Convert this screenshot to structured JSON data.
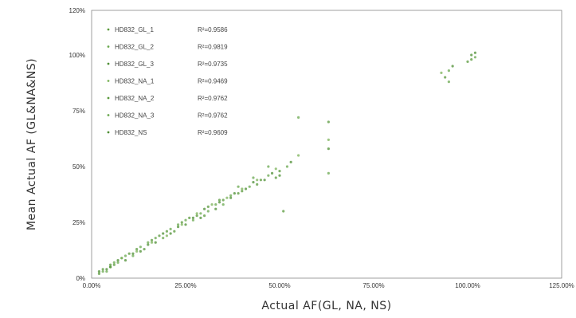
{
  "chart_data": {
    "type": "scatter",
    "xlabel": "Actual AF(GL, NA, NS)",
    "ylabel": "Mean Actual AF (GL&NA&NS)",
    "xlim": [
      0,
      125
    ],
    "ylim": [
      0,
      120
    ],
    "x_ticks": [
      {
        "v": 0,
        "label": "0.00%"
      },
      {
        "v": 25,
        "label": "25.00%"
      },
      {
        "v": 50,
        "label": "50.00%"
      },
      {
        "v": 75,
        "label": "75.00%"
      },
      {
        "v": 100,
        "label": "100.00%"
      },
      {
        "v": 125,
        "label": "125.00%"
      }
    ],
    "y_ticks": [
      {
        "v": 0,
        "label": "0%"
      },
      {
        "v": 25,
        "label": "25%"
      },
      {
        "v": 50,
        "label": "50%"
      },
      {
        "v": 75,
        "label": "75%"
      },
      {
        "v": 100,
        "label": "100%"
      },
      {
        "v": 120,
        "label": "120%"
      }
    ],
    "grid": false,
    "legend_position": "top-left",
    "point_color": "#5a9a3c",
    "series": [
      {
        "name": "HD832_GL_1",
        "r2": "R²=0.9586",
        "color": "#5a9a3c",
        "points": [
          [
            2,
            2
          ],
          [
            5,
            6
          ],
          [
            8,
            9
          ],
          [
            12,
            13
          ],
          [
            16,
            17
          ],
          [
            20,
            21
          ],
          [
            24,
            25
          ],
          [
            28,
            28
          ],
          [
            31,
            32
          ],
          [
            35,
            35
          ],
          [
            40,
            39
          ],
          [
            45,
            44
          ],
          [
            50,
            48
          ],
          [
            94,
            90
          ],
          [
            101,
            98
          ]
        ]
      },
      {
        "name": "HD832_GL_2",
        "r2": "R²=0.9819",
        "color": "#6aa84f",
        "points": [
          [
            3,
            3
          ],
          [
            6,
            7
          ],
          [
            9,
            10
          ],
          [
            13,
            14
          ],
          [
            17,
            18
          ],
          [
            21,
            22
          ],
          [
            25,
            26
          ],
          [
            29,
            29
          ],
          [
            33,
            33
          ],
          [
            37,
            37
          ],
          [
            42,
            41
          ],
          [
            47,
            46
          ],
          [
            52,
            50
          ],
          [
            95,
            93
          ],
          [
            102,
            99
          ]
        ]
      },
      {
        "name": "HD832_GL_3",
        "r2": "R²=0.9735",
        "color": "#4e8f34",
        "points": [
          [
            4,
            4
          ],
          [
            7,
            8
          ],
          [
            11,
            11
          ],
          [
            15,
            15
          ],
          [
            19,
            20
          ],
          [
            23,
            23
          ],
          [
            27,
            27
          ],
          [
            30,
            31
          ],
          [
            34,
            34
          ],
          [
            38,
            38
          ],
          [
            43,
            43
          ],
          [
            48,
            47
          ],
          [
            53,
            52
          ],
          [
            96,
            95
          ],
          [
            101,
            100
          ]
        ]
      },
      {
        "name": "HD832_NA_1",
        "r2": "R²=0.9469",
        "color": "#7cb35a",
        "points": [
          [
            5,
            5
          ],
          [
            8,
            9
          ],
          [
            12,
            12
          ],
          [
            16,
            16
          ],
          [
            20,
            19
          ],
          [
            24,
            24
          ],
          [
            28,
            29
          ],
          [
            32,
            33
          ],
          [
            36,
            36
          ],
          [
            40,
            40
          ],
          [
            44,
            44
          ],
          [
            49,
            49
          ],
          [
            55,
            55
          ],
          [
            63,
            62
          ],
          [
            93,
            92
          ]
        ]
      },
      {
        "name": "HD832_NA_2",
        "r2": "R²=0.9762",
        "color": "#5a9a3c",
        "points": [
          [
            3,
            4
          ],
          [
            6,
            6
          ],
          [
            10,
            11
          ],
          [
            14,
            13
          ],
          [
            18,
            19
          ],
          [
            22,
            21
          ],
          [
            26,
            27
          ],
          [
            30,
            28
          ],
          [
            34,
            35
          ],
          [
            39,
            38
          ],
          [
            44,
            42
          ],
          [
            49,
            45
          ],
          [
            51,
            30
          ],
          [
            63,
            70
          ],
          [
            100,
            97
          ]
        ]
      },
      {
        "name": "HD832_NA_3",
        "r2": "R²=0.9762",
        "color": "#6aa84f",
        "points": [
          [
            4,
            3
          ],
          [
            7,
            7
          ],
          [
            11,
            10
          ],
          [
            15,
            16
          ],
          [
            19,
            18
          ],
          [
            23,
            24
          ],
          [
            27,
            26
          ],
          [
            31,
            30
          ],
          [
            35,
            33
          ],
          [
            39,
            41
          ],
          [
            43,
            45
          ],
          [
            47,
            50
          ],
          [
            55,
            72
          ],
          [
            63,
            47
          ],
          [
            95,
            88
          ]
        ]
      },
      {
        "name": "HD832_NS",
        "r2": "R²=0.9609",
        "color": "#4e8f34",
        "points": [
          [
            2,
            3
          ],
          [
            5,
            5
          ],
          [
            9,
            8
          ],
          [
            13,
            12
          ],
          [
            17,
            16
          ],
          [
            21,
            20
          ],
          [
            25,
            24
          ],
          [
            29,
            27
          ],
          [
            33,
            31
          ],
          [
            37,
            36
          ],
          [
            41,
            40
          ],
          [
            46,
            44
          ],
          [
            50,
            46
          ],
          [
            63,
            58
          ],
          [
            102,
            101
          ]
        ]
      }
    ]
  }
}
